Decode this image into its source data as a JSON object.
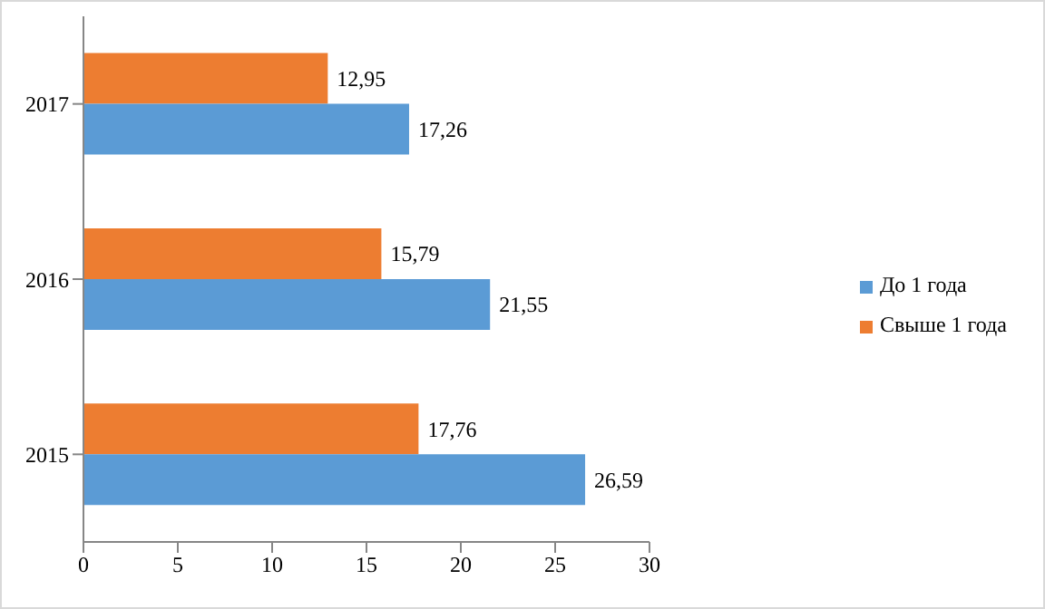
{
  "chart_data": {
    "type": "bar",
    "orientation": "horizontal",
    "categories": [
      "2017",
      "2016",
      "2015"
    ],
    "series": [
      {
        "name": "Свыше 1 года",
        "color": "#ed7d31",
        "values": [
          12.95,
          15.79,
          17.76
        ],
        "value_labels": [
          "12,95",
          "15,79",
          "17,76"
        ]
      },
      {
        "name": "До 1 года",
        "color": "#5b9bd5",
        "values": [
          17.26,
          21.55,
          26.59
        ],
        "value_labels": [
          "17,26",
          "21,55",
          "26,59"
        ]
      }
    ],
    "xlim": [
      0,
      30
    ],
    "xticks": [
      0,
      5,
      10,
      15,
      20,
      25,
      30
    ],
    "grid": false,
    "legend": "right"
  }
}
